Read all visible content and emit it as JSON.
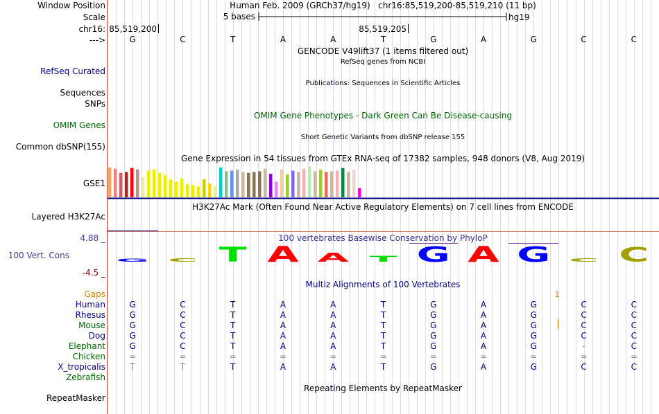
{
  "ruler": {
    "window_position_label": "Window Position",
    "window_position_text": "Human Feb. 2009 (GRCh37/hg19)   chr16:85,519,200-85,519,210 (11 bp)",
    "scale_label": "Scale",
    "scale_text": "5 bases",
    "assembly": "hg19",
    "chrom_label": "chr16:",
    "pos_left": "85,519,200",
    "pos_mid": "85,519,205",
    "strand_label": "--->",
    "bases": [
      "G",
      "C",
      "T",
      "A",
      "A",
      "T",
      "G",
      "A",
      "G",
      "C",
      "C"
    ]
  },
  "tracks": {
    "gencode_title": "GENCODE V49lift37 (1 items filtered out)",
    "refseq_title": "RefSeq genes from NCBI",
    "refseq_label": "RefSeq Curated",
    "publications_title": "Publications: Sequences in Scientific Articles",
    "sequences_label": "Sequences",
    "snps_label": "SNPs",
    "omim_title": "OMIM Gene Phenotypes - Dark Green Can Be Disease-causing",
    "omim_label": "OMIM Genes",
    "dbsnp_title": "Short Genetic Variants from dbSNP release 155",
    "dbsnp_label": "Common dbSNP(155)",
    "gtex_title": "Gene Expression in 54 tissues from GTEx RNA-seq of 17382 samples, 948 donors (V8, Aug 2019)",
    "gtex_label": "GSE1",
    "h3k27ac_title": "H3K27Ac Mark (Often Found Near Active Regulatory Elements) on 7 cell lines from ENCODE",
    "h3k27ac_label": "Layered H3K27Ac",
    "cons_title": "100 vertebrates Basewise Conservation by PhyloP",
    "cons_label": "100 Vert. Cons",
    "cons_max": "4.88 _",
    "cons_min": "-4.5 _",
    "multiz_title": "Multiz Alignments of 100 Vertebrates",
    "repeat_title": "Repeating Elements by RepeatMasker",
    "repeat_label": "RepeatMasker"
  },
  "gtex_bars": [
    {
      "v": 0.92,
      "c": "#f4a460"
    },
    {
      "v": 0.88,
      "c": "#f08080"
    },
    {
      "v": 0.75,
      "c": "#cd5c5c"
    },
    {
      "v": 0.78,
      "c": "#a52a2a"
    },
    {
      "v": 0.9,
      "c": "#ff0000"
    },
    {
      "v": 0.86,
      "c": "#bc8f8f"
    },
    {
      "v": 0.62,
      "c": "#eeeeaa"
    },
    {
      "v": 0.82,
      "c": "#eeee00"
    },
    {
      "v": 0.86,
      "c": "#eeee00"
    },
    {
      "v": 0.75,
      "c": "#eeee00"
    },
    {
      "v": 0.68,
      "c": "#eeee00"
    },
    {
      "v": 0.55,
      "c": "#eeee00"
    },
    {
      "v": 0.48,
      "c": "#eeee00"
    },
    {
      "v": 0.58,
      "c": "#eeee00"
    },
    {
      "v": 0.4,
      "c": "#eeee00"
    },
    {
      "v": 0.38,
      "c": "#eeee00"
    },
    {
      "v": 0.33,
      "c": "#eeee00"
    },
    {
      "v": 0.55,
      "c": "#cdcd00"
    },
    {
      "v": 0.43,
      "c": "#ffd700"
    },
    {
      "v": 0.35,
      "c": "#eeee99"
    },
    {
      "v": 0.92,
      "c": "#00cdcd"
    },
    {
      "v": 0.8,
      "c": "#8fbc8f"
    },
    {
      "v": 0.82,
      "c": "#6495ed"
    },
    {
      "v": 0.85,
      "c": "#aaaaaa"
    },
    {
      "v": 0.78,
      "c": "#cdb79e"
    },
    {
      "v": 0.75,
      "c": "#8b7355"
    },
    {
      "v": 0.78,
      "c": "#8b7355"
    },
    {
      "v": 0.8,
      "c": "#8b7355"
    },
    {
      "v": 0.88,
      "c": "#cdb79e"
    },
    {
      "v": 0.72,
      "c": "#9400d3"
    },
    {
      "v": 0.48,
      "c": "#ee82ee"
    },
    {
      "v": 0.85,
      "c": "#eecfa1"
    },
    {
      "v": 0.7,
      "c": "#9acd32"
    },
    {
      "v": 0.82,
      "c": "#7a67ee"
    },
    {
      "v": 0.78,
      "c": "#cdb79e"
    },
    {
      "v": 0.88,
      "c": "#eeb4b4"
    },
    {
      "v": 0.95,
      "c": "#b4eeb4"
    },
    {
      "v": 0.8,
      "c": "#cdb79e"
    },
    {
      "v": 0.85,
      "c": "#9acd32"
    },
    {
      "v": 0.78,
      "c": "#ee6a50"
    },
    {
      "v": 0.8,
      "c": "#cdb79e"
    },
    {
      "v": 0.82,
      "c": "#eeb4b4"
    },
    {
      "v": 0.9,
      "c": "#008b45"
    },
    {
      "v": 0.78,
      "c": "#cdb79e"
    },
    {
      "v": 0.85,
      "c": "#eed5d2"
    },
    {
      "v": 0.28,
      "c": "#ee00ee"
    }
  ],
  "logo": [
    {
      "b": "G",
      "c": "#0000ff",
      "h": 0.17
    },
    {
      "b": "C",
      "c": "#a0a000",
      "h": 0.22
    },
    {
      "b": "T",
      "c": "#00e000",
      "h": 0.88
    },
    {
      "b": "A",
      "c": "#ff0000",
      "h": 0.92
    },
    {
      "b": "A",
      "c": "#ff0000",
      "h": 0.52
    },
    {
      "b": "T",
      "c": "#00e000",
      "h": 0.33
    },
    {
      "b": "G",
      "c": "#0000ff",
      "h": 0.9
    },
    {
      "b": "A",
      "c": "#ff0000",
      "h": 0.93
    },
    {
      "b": "G",
      "c": "#0000ff",
      "h": 0.9
    },
    {
      "b": "C",
      "c": "#a0a000",
      "h": 0.2
    },
    {
      "b": "C",
      "c": "#a0a000",
      "h": 0.85
    }
  ],
  "gaps": {
    "label": "Gaps",
    "marker": "1"
  },
  "species": [
    {
      "name": "Human",
      "color": "#000080",
      "bases": [
        "G",
        "C",
        "T",
        "A",
        "A",
        "T",
        "G",
        "A",
        "G",
        "C",
        "C"
      ],
      "style": [
        "n",
        "n",
        "n",
        "n",
        "n",
        "n",
        "n",
        "n",
        "n",
        "n",
        "n"
      ]
    },
    {
      "name": "Rhesus",
      "color": "#000080",
      "bases": [
        "G",
        "C",
        "T",
        "A",
        "A",
        "T",
        "G",
        "A",
        "G",
        "C",
        "C"
      ],
      "style": [
        "n",
        "n",
        "n",
        "n",
        "n",
        "n",
        "n",
        "n",
        "n",
        "n",
        "n"
      ]
    },
    {
      "name": "Mouse",
      "color": "#006400",
      "bases": [
        "G",
        "C",
        "T",
        "A",
        "A",
        "T",
        "G",
        "A",
        "G",
        "C",
        "C"
      ],
      "style": [
        "n",
        "n",
        "n",
        "n",
        "n",
        "n",
        "n",
        "n",
        "n",
        "n",
        "n"
      ]
    },
    {
      "name": "Dog",
      "color": "#000080",
      "bases": [
        "G",
        "C",
        "T",
        "A",
        "A",
        "T",
        "G",
        "A",
        "G",
        "C",
        "C"
      ],
      "style": [
        "n",
        "n",
        "n",
        "n",
        "n",
        "n",
        "n",
        "n",
        "n",
        "n",
        "n"
      ]
    },
    {
      "name": "Elephant",
      "color": "#006400",
      "bases": [
        "G",
        "C",
        "T",
        "A",
        "A",
        "T",
        "G",
        "A",
        "G",
        "-",
        "C"
      ],
      "style": [
        "n",
        "n",
        "n",
        "n",
        "n",
        "n",
        "n",
        "n",
        "n",
        "d",
        "n"
      ]
    },
    {
      "name": "Chicken",
      "color": "#006400",
      "bases": [
        "=",
        "=",
        "=",
        "=",
        "=",
        "=",
        "=",
        "=",
        "=",
        "=",
        "="
      ],
      "style": [
        "d",
        "d",
        "d",
        "d",
        "d",
        "d",
        "d",
        "d",
        "d",
        "d",
        "d"
      ]
    },
    {
      "name": "X_tropicalis",
      "color": "#000080",
      "bases": [
        "T",
        "T",
        "T",
        "A",
        "A",
        "T",
        "G",
        "A",
        "G",
        "C",
        "C"
      ],
      "style": [
        "l",
        "l",
        "n",
        "n",
        "n",
        "n",
        "n",
        "n",
        "n",
        "n",
        "n"
      ]
    },
    {
      "name": "Zebrafish",
      "color": "#006400",
      "bases": [
        "",
        "",
        "",
        "",
        "",
        "",
        "",
        "",
        "",
        "",
        ""
      ],
      "style": [
        "n",
        "n",
        "n",
        "n",
        "n",
        "n",
        "n",
        "n",
        "n",
        "n",
        "n"
      ]
    }
  ]
}
